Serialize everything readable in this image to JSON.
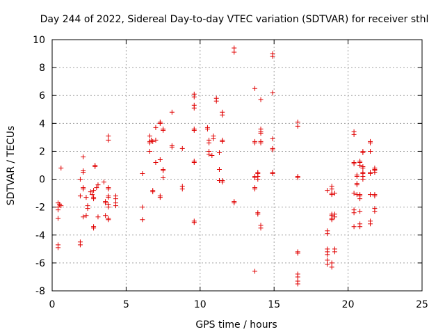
{
  "chart_data": {
    "type": "scatter",
    "title": "Day 244 of 2022, Sidereal Day-to-day VTEC variation (SDTVAR) for receiver sthl",
    "xlabel": "GPS time / hours",
    "ylabel": "SDTVAR / TECUs",
    "xlim": [
      0,
      25
    ],
    "ylim": [
      -8,
      10
    ],
    "xticks": [
      0,
      5,
      10,
      15,
      20,
      25
    ],
    "yticks": [
      -8,
      -6,
      -4,
      -2,
      0,
      2,
      4,
      6,
      8,
      10
    ],
    "grid": true,
    "marker": "plus",
    "color": "#e00000",
    "series": [
      {
        "name": "sthl",
        "points": [
          [
            0.4,
            -1.7
          ],
          [
            0.4,
            -2.0
          ],
          [
            0.4,
            -2.2
          ],
          [
            0.4,
            -2.8
          ],
          [
            0.4,
            -4.7
          ],
          [
            0.4,
            -4.9
          ],
          [
            0.5,
            -1.8
          ],
          [
            0.6,
            -1.9
          ],
          [
            0.6,
            0.8
          ],
          [
            1.9,
            0.0
          ],
          [
            1.9,
            -1.2
          ],
          [
            1.9,
            -4.5
          ],
          [
            1.9,
            -4.7
          ],
          [
            2.1,
            1.6
          ],
          [
            2.1,
            0.6
          ],
          [
            2.1,
            0.5
          ],
          [
            2.1,
            -0.6
          ],
          [
            2.1,
            -0.7
          ],
          [
            2.1,
            -2.7
          ],
          [
            2.3,
            -1.3
          ],
          [
            2.3,
            -2.6
          ],
          [
            2.4,
            -1.9
          ],
          [
            2.4,
            -2.1
          ],
          [
            2.6,
            -0.9
          ],
          [
            2.7,
            -1.1
          ],
          [
            2.8,
            -0.8
          ],
          [
            2.8,
            -1.3
          ],
          [
            2.8,
            -1.4
          ],
          [
            2.8,
            -3.4
          ],
          [
            2.8,
            -3.5
          ],
          [
            2.9,
            1.0
          ],
          [
            2.9,
            0.9
          ],
          [
            3.0,
            -0.6
          ],
          [
            3.1,
            -0.4
          ],
          [
            3.1,
            -2.7
          ],
          [
            3.5,
            -0.2
          ],
          [
            3.6,
            -1.6
          ],
          [
            3.6,
            -1.7
          ],
          [
            3.6,
            -2.6
          ],
          [
            3.8,
            3.1
          ],
          [
            3.8,
            2.8
          ],
          [
            3.8,
            -0.6
          ],
          [
            3.8,
            -0.7
          ],
          [
            3.8,
            -1.2
          ],
          [
            3.8,
            -1.3
          ],
          [
            3.8,
            -1.8
          ],
          [
            3.8,
            -2.0
          ],
          [
            3.8,
            -2.8
          ],
          [
            3.8,
            -2.9
          ],
          [
            4.3,
            -1.2
          ],
          [
            4.3,
            -1.4
          ],
          [
            4.3,
            -1.7
          ],
          [
            4.3,
            -1.9
          ],
          [
            6.1,
            0.4
          ],
          [
            6.1,
            -2.0
          ],
          [
            6.1,
            -2.9
          ],
          [
            6.6,
            3.1
          ],
          [
            6.6,
            2.7
          ],
          [
            6.6,
            2.6
          ],
          [
            6.6,
            2.0
          ],
          [
            6.7,
            2.8
          ],
          [
            6.8,
            2.7
          ],
          [
            6.8,
            -0.8
          ],
          [
            6.8,
            -0.9
          ],
          [
            7.0,
            3.7
          ],
          [
            7.0,
            2.8
          ],
          [
            7.0,
            1.2
          ],
          [
            7.3,
            4.1
          ],
          [
            7.3,
            4.0
          ],
          [
            7.3,
            1.4
          ],
          [
            7.3,
            -1.2
          ],
          [
            7.3,
            -1.3
          ],
          [
            7.5,
            3.6
          ],
          [
            7.5,
            3.5
          ],
          [
            7.5,
            0.7
          ],
          [
            7.5,
            0.6
          ],
          [
            7.5,
            0.1
          ],
          [
            8.1,
            4.8
          ],
          [
            8.1,
            2.4
          ],
          [
            8.1,
            2.3
          ],
          [
            8.8,
            2.2
          ],
          [
            8.8,
            -0.5
          ],
          [
            8.8,
            -0.7
          ],
          [
            9.6,
            6.1
          ],
          [
            9.6,
            5.9
          ],
          [
            9.6,
            5.3
          ],
          [
            9.6,
            5.1
          ],
          [
            9.6,
            3.6
          ],
          [
            9.6,
            3.5
          ],
          [
            9.6,
            1.3
          ],
          [
            9.6,
            1.2
          ],
          [
            9.6,
            -3.0
          ],
          [
            9.6,
            -3.1
          ],
          [
            10.5,
            3.7
          ],
          [
            10.5,
            3.6
          ],
          [
            10.6,
            2.8
          ],
          [
            10.6,
            2.6
          ],
          [
            10.6,
            2.0
          ],
          [
            10.6,
            1.8
          ],
          [
            10.8,
            1.7
          ],
          [
            10.9,
            3.1
          ],
          [
            10.9,
            2.9
          ],
          [
            11.1,
            5.8
          ],
          [
            11.1,
            5.6
          ],
          [
            11.3,
            1.9
          ],
          [
            11.3,
            0.7
          ],
          [
            11.3,
            -0.1
          ],
          [
            11.5,
            4.8
          ],
          [
            11.5,
            4.6
          ],
          [
            11.5,
            2.8
          ],
          [
            11.5,
            2.7
          ],
          [
            11.5,
            -0.1
          ],
          [
            11.5,
            -0.2
          ],
          [
            12.3,
            9.4
          ],
          [
            12.3,
            9.1
          ],
          [
            12.3,
            -1.6
          ],
          [
            12.3,
            -1.7
          ],
          [
            13.7,
            6.5
          ],
          [
            13.7,
            2.7
          ],
          [
            13.7,
            2.6
          ],
          [
            13.7,
            0.2
          ],
          [
            13.7,
            0.1
          ],
          [
            13.7,
            -0.6
          ],
          [
            13.7,
            -0.7
          ],
          [
            13.7,
            -6.6
          ],
          [
            13.9,
            0.5
          ],
          [
            13.9,
            0.4
          ],
          [
            13.9,
            0.2
          ],
          [
            13.9,
            0.0
          ],
          [
            13.9,
            -2.4
          ],
          [
            13.9,
            -2.5
          ],
          [
            14.1,
            5.7
          ],
          [
            14.1,
            3.6
          ],
          [
            14.1,
            3.4
          ],
          [
            14.1,
            3.3
          ],
          [
            14.1,
            2.7
          ],
          [
            14.1,
            2.6
          ],
          [
            14.1,
            -3.3
          ],
          [
            14.1,
            -3.5
          ],
          [
            14.9,
            9.0
          ],
          [
            14.9,
            8.8
          ],
          [
            14.9,
            6.2
          ],
          [
            14.9,
            2.9
          ],
          [
            14.9,
            2.2
          ],
          [
            14.9,
            2.1
          ],
          [
            14.9,
            0.5
          ],
          [
            14.9,
            0.4
          ],
          [
            16.6,
            4.1
          ],
          [
            16.6,
            3.8
          ],
          [
            16.6,
            0.2
          ],
          [
            16.6,
            0.1
          ],
          [
            16.6,
            -5.2
          ],
          [
            16.6,
            -5.3
          ],
          [
            16.6,
            -6.8
          ],
          [
            16.6,
            -7.0
          ],
          [
            16.6,
            -7.3
          ],
          [
            16.6,
            -7.5
          ],
          [
            18.6,
            -0.8
          ],
          [
            18.6,
            -3.7
          ],
          [
            18.6,
            -3.9
          ],
          [
            18.6,
            -5.0
          ],
          [
            18.6,
            -5.2
          ],
          [
            18.6,
            -5.4
          ],
          [
            18.6,
            -5.8
          ],
          [
            18.6,
            -6.1
          ],
          [
            18.9,
            -0.5
          ],
          [
            18.9,
            -0.7
          ],
          [
            18.9,
            -1.0
          ],
          [
            18.9,
            -1.1
          ],
          [
            18.9,
            -2.5
          ],
          [
            18.9,
            -2.6
          ],
          [
            18.9,
            -2.8
          ],
          [
            18.9,
            -2.9
          ],
          [
            18.9,
            -6.0
          ],
          [
            18.9,
            -6.3
          ],
          [
            19.1,
            -1.0
          ],
          [
            19.1,
            -2.5
          ],
          [
            19.1,
            -2.7
          ],
          [
            19.1,
            -5.0
          ],
          [
            19.1,
            -5.2
          ],
          [
            20.4,
            3.4
          ],
          [
            20.4,
            3.2
          ],
          [
            20.4,
            1.2
          ],
          [
            20.4,
            1.1
          ],
          [
            20.4,
            -1.0
          ],
          [
            20.4,
            -2.2
          ],
          [
            20.4,
            -2.4
          ],
          [
            20.4,
            -3.4
          ],
          [
            20.6,
            0.3
          ],
          [
            20.6,
            0.2
          ],
          [
            20.6,
            -0.3
          ],
          [
            20.6,
            -0.4
          ],
          [
            20.6,
            -1.1
          ],
          [
            20.8,
            1.3
          ],
          [
            20.8,
            1.2
          ],
          [
            20.8,
            1.0
          ],
          [
            20.8,
            -1.1
          ],
          [
            20.8,
            -1.2
          ],
          [
            20.8,
            -1.4
          ],
          [
            20.8,
            -2.3
          ],
          [
            20.8,
            -3.2
          ],
          [
            20.8,
            -3.4
          ],
          [
            21.0,
            2.0
          ],
          [
            21.0,
            1.9
          ],
          [
            21.0,
            0.9
          ],
          [
            21.0,
            0.8
          ],
          [
            21.0,
            0.5
          ],
          [
            21.0,
            0.4
          ],
          [
            21.0,
            0.2
          ],
          [
            21.0,
            0.0
          ],
          [
            21.5,
            2.7
          ],
          [
            21.5,
            2.6
          ],
          [
            21.5,
            2.0
          ],
          [
            21.5,
            0.5
          ],
          [
            21.5,
            0.4
          ],
          [
            21.5,
            -1.1
          ],
          [
            21.5,
            -3.0
          ],
          [
            21.5,
            -3.2
          ],
          [
            21.8,
            0.8
          ],
          [
            21.8,
            0.7
          ],
          [
            21.8,
            0.6
          ],
          [
            21.8,
            0.5
          ],
          [
            21.8,
            -1.1
          ],
          [
            21.8,
            -1.2
          ],
          [
            21.8,
            -2.1
          ],
          [
            21.8,
            -2.3
          ]
        ]
      }
    ]
  }
}
